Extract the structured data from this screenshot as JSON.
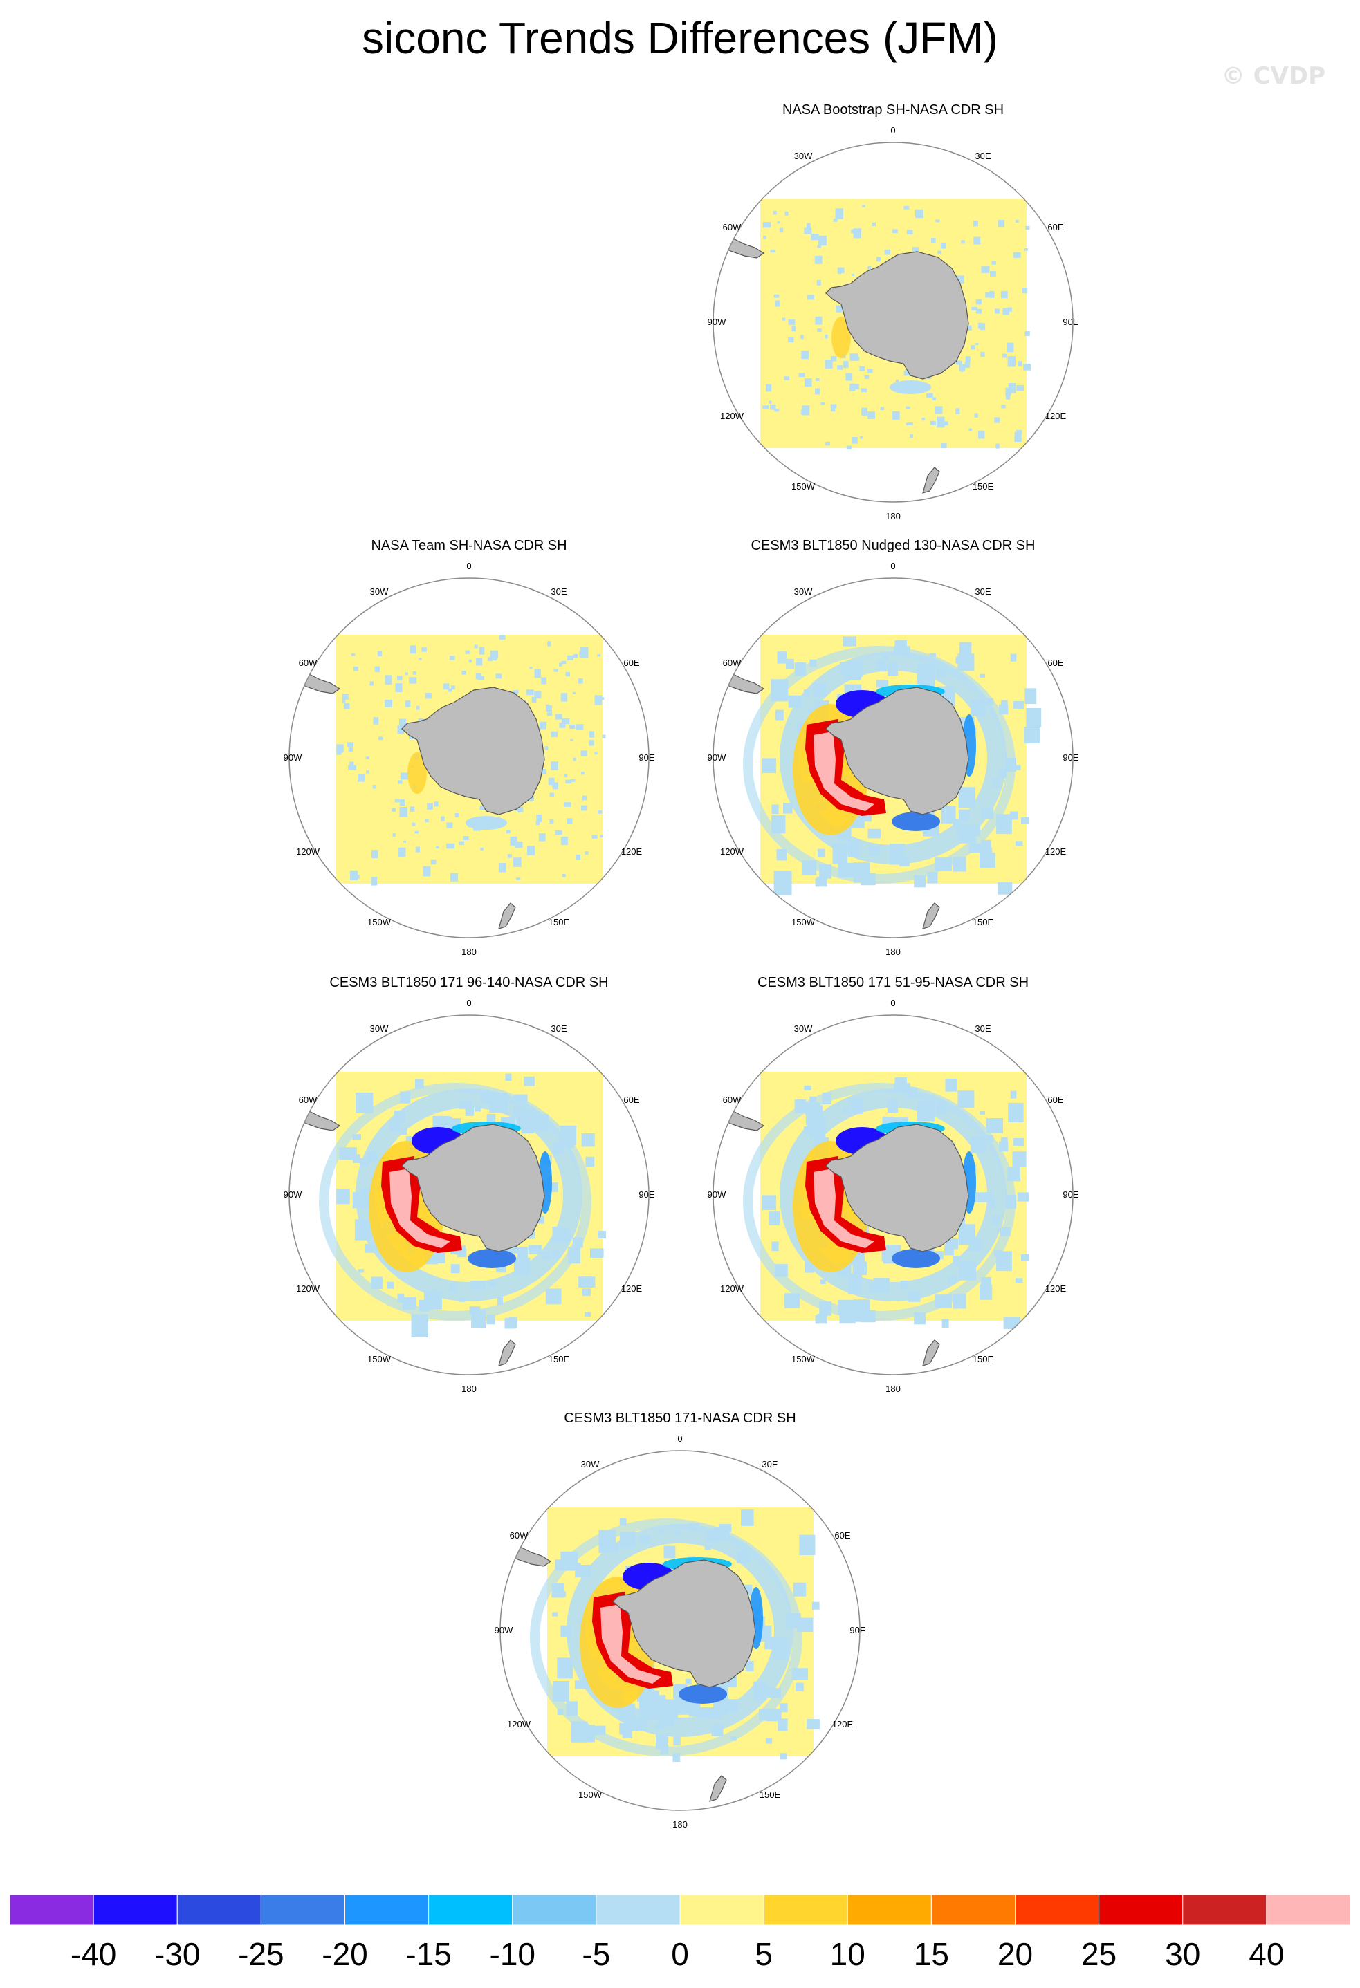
{
  "page_title": "siconc Trends Differences (JFM)",
  "watermark": "© CVDP",
  "lon_labels": {
    "top": "0",
    "bottom": "180",
    "upper_left": "30W",
    "upper_right": "30E",
    "left_upper": "60W",
    "right_upper": "60E",
    "left": "90W",
    "right": "90E",
    "left_lower": "120W",
    "right_lower": "120E",
    "lower_left": "150W",
    "lower_right": "150E"
  },
  "chart_data": {
    "type": "heatmap",
    "variable": "siconc",
    "season": "JFM",
    "projection": "south polar stereographic",
    "panels": [
      {
        "id": "bootstrap",
        "title": "NASA Bootstrap SH-NASA CDR SH",
        "pattern": "near-zero"
      },
      {
        "id": "team",
        "title": "NASA Team SH-NASA CDR SH",
        "pattern": "near-zero"
      },
      {
        "id": "nudged",
        "title": "CESM3 BLT1850 Nudged 130-NASA CDR SH",
        "pattern": "model"
      },
      {
        "id": "m96",
        "title": "CESM3 BLT1850 171 96-140-NASA CDR SH",
        "pattern": "model"
      },
      {
        "id": "m51",
        "title": "CESM3 BLT1850 171 51-95-NASA CDR SH",
        "pattern": "model"
      },
      {
        "id": "m171",
        "title": "CESM3 BLT1850 171-NASA CDR SH",
        "pattern": "model"
      }
    ],
    "colorbar": {
      "labels": [
        "-40",
        "-30",
        "-25",
        "-20",
        "-15",
        "-10",
        "-5",
        "0",
        "5",
        "10",
        "15",
        "20",
        "25",
        "30",
        "40"
      ],
      "colors": [
        "#8a2be2",
        "#1e10ff",
        "#2a4ae0",
        "#3b7de8",
        "#1e96ff",
        "#00bfff",
        "#7cc8f4",
        "#b5def4",
        "#fff58a",
        "#ffd52e",
        "#ffaa00",
        "#ff7a00",
        "#ff3a00",
        "#e60000",
        "#cc2222",
        "#ffb6b6"
      ]
    }
  }
}
